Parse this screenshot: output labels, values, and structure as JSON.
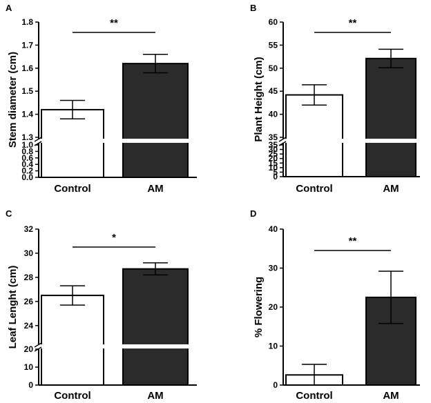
{
  "figure": {
    "background": "#ffffff"
  },
  "chart_data": [
    {
      "panel": "A",
      "type": "bar",
      "categories": [
        "Control",
        "AM"
      ],
      "values": [
        1.42,
        1.62
      ],
      "errors": [
        0.04,
        0.04
      ],
      "colors": [
        "#ffffff",
        "#2b2b2b"
      ],
      "ylabel": "Stem diameter (cm)",
      "broken_axis": true,
      "ylim_lower": [
        0.0,
        1.0
      ],
      "ylim_upper": [
        1.3,
        1.8
      ],
      "lower_ticks": [
        "0.0",
        "0.2",
        "0.4",
        "0.6",
        "0.8",
        "1.0"
      ],
      "upper_ticks": [
        "1.3",
        "1.4",
        "1.5",
        "1.6",
        "1.7",
        "1.8"
      ],
      "significance": "**"
    },
    {
      "panel": "B",
      "type": "bar",
      "categories": [
        "Control",
        "AM"
      ],
      "values": [
        44.2,
        52.1
      ],
      "errors": [
        2.2,
        2.0
      ],
      "colors": [
        "#ffffff",
        "#2b2b2b"
      ],
      "ylabel": "Plant Height (cm)",
      "broken_axis": true,
      "ylim_lower": [
        0,
        35
      ],
      "ylim_upper": [
        35,
        60
      ],
      "lower_ticks": [
        "0",
        "5",
        "10",
        "15",
        "20",
        "25",
        "30",
        "35"
      ],
      "upper_ticks": [
        "35",
        "40",
        "45",
        "50",
        "55",
        "60"
      ],
      "significance": "**"
    },
    {
      "panel": "C",
      "type": "bar",
      "categories": [
        "Control",
        "AM"
      ],
      "values": [
        26.5,
        28.7
      ],
      "errors": [
        0.8,
        0.5
      ],
      "colors": [
        "#ffffff",
        "#2b2b2b"
      ],
      "ylabel": "Leaf Lenght (cm)",
      "broken_axis": true,
      "ylim_lower": [
        0,
        20
      ],
      "ylim_upper": [
        22.5,
        32
      ],
      "lower_ticks": [
        "0",
        "10",
        "20"
      ],
      "mid_ticks": [
        "10",
        "20"
      ],
      "upper_ticks": [
        "24",
        "26",
        "28",
        "30",
        "32"
      ],
      "significance": "*"
    },
    {
      "panel": "D",
      "type": "bar",
      "categories": [
        "Control",
        "AM"
      ],
      "values": [
        2.6,
        22.5
      ],
      "errors": [
        2.7,
        6.7
      ],
      "colors": [
        "#ffffff",
        "#2b2b2b"
      ],
      "ylabel": "% Flowering",
      "broken_axis": false,
      "ylim": [
        0,
        40
      ],
      "ticks": [
        "0",
        "10",
        "20",
        "30",
        "40"
      ],
      "significance": "**"
    }
  ]
}
